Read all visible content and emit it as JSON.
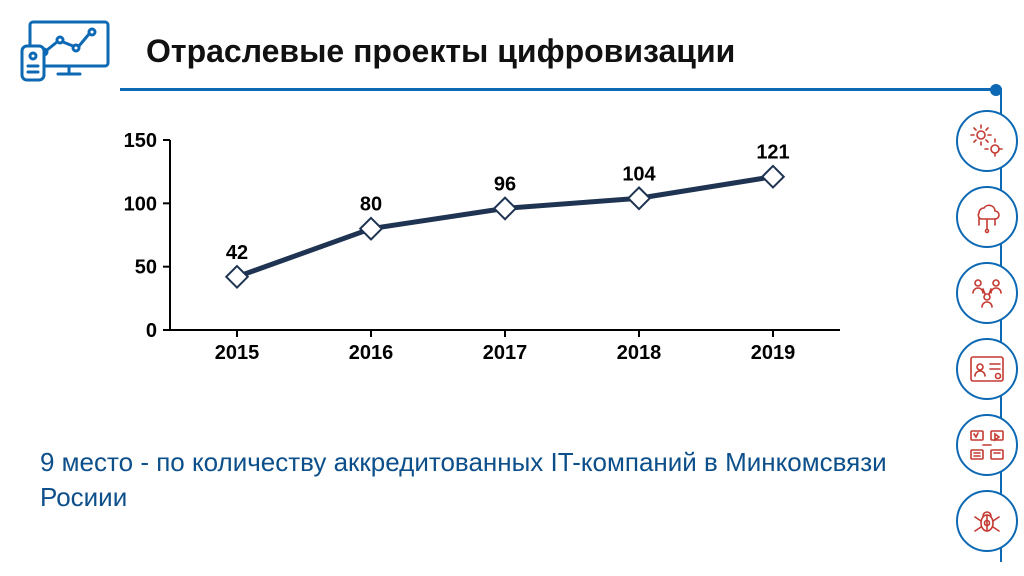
{
  "header": {
    "title": "Отраслевые проекты цифровизации",
    "title_fontsize": 32,
    "title_color": "#111111",
    "rule_color": "#0d69b3"
  },
  "chart": {
    "type": "line",
    "categories": [
      "2015",
      "2016",
      "2017",
      "2018",
      "2019"
    ],
    "values": [
      42,
      80,
      96,
      104,
      121
    ],
    "data_labels": [
      "42",
      "80",
      "96",
      "104",
      "121"
    ],
    "line_color": "#1f3452",
    "line_width": 5,
    "marker_style": "diamond",
    "marker_size": 14,
    "marker_fill": "#ffffff",
    "marker_stroke": "#1f3452",
    "marker_stroke_width": 2,
    "ylim": [
      0,
      150
    ],
    "ytick_step": 50,
    "yticks": [
      "0",
      "50",
      "100",
      "150"
    ],
    "axis_color": "#000000",
    "axis_width": 2,
    "tick_label_fontsize": 20,
    "tick_label_weight": "700",
    "tick_label_color": "#000000",
    "data_label_fontsize": 20,
    "data_label_weight": "700",
    "data_label_color": "#000000",
    "background_color": "#ffffff",
    "tick_mark_len": 7
  },
  "caption": {
    "text": "9 место - по количеству аккредитованных IT-компаний в Минкомсвязи Росиии",
    "fontsize": 26,
    "color": "#0d4f8a"
  },
  "side_icons": {
    "count": 6,
    "circle_stroke": "#0d69b3",
    "icon_stroke": "#c43a32",
    "names": [
      "settings-chip-icon",
      "cloud-network-icon",
      "people-group-icon",
      "id-card-icon",
      "media-flow-icon",
      "bug-gear-icon"
    ]
  }
}
